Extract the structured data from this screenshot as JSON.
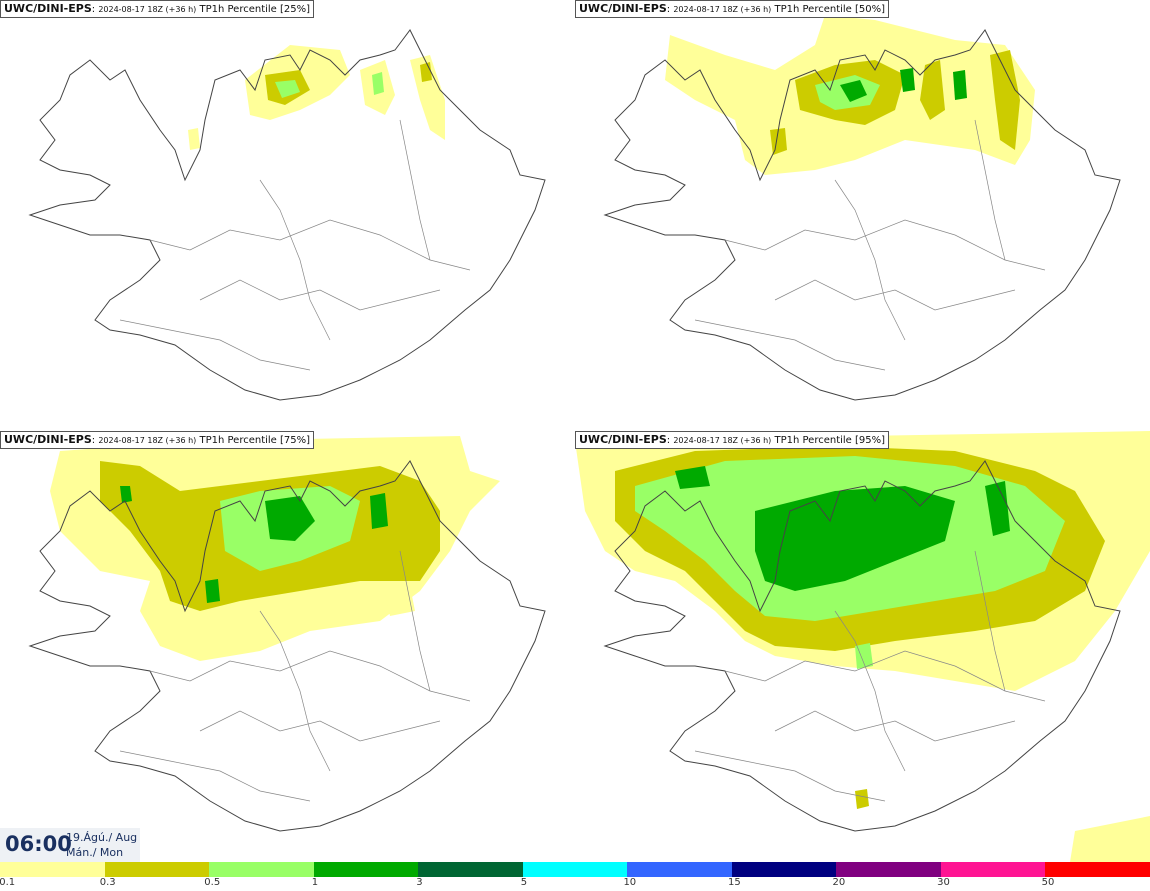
{
  "panels": [
    {
      "model": "UWC/DINI-EPS",
      "run": "2024-08-17 18Z (+36 h)",
      "product": "TP1h Percentile",
      "percentile": "[25%]"
    },
    {
      "model": "UWC/DINI-EPS",
      "run": "2024-08-17 18Z (+36 h)",
      "product": "TP1h Percentile",
      "percentile": "[50%]"
    },
    {
      "model": "UWC/DINI-EPS",
      "run": "2024-08-17 18Z (+36 h)",
      "product": "TP1h Percentile",
      "percentile": "[75%]"
    },
    {
      "model": "UWC/DINI-EPS",
      "run": "2024-08-17 18Z (+36 h)",
      "product": "TP1h Percentile",
      "percentile": "[95%]"
    }
  ],
  "valid_time": {
    "time": "06:00",
    "date": "19.Ágú./ Aug",
    "weekday": "Mán./ Mon"
  },
  "legend": {
    "colors": [
      "#ffff99",
      "#cccc00",
      "#99ff66",
      "#00aa00",
      "#006633",
      "#00ffff",
      "#3366ff",
      "#000080",
      "#800080",
      "#ff1493",
      "#ff0000"
    ],
    "thresholds": [
      "0.1",
      "0.3",
      "0.5",
      "1",
      "3",
      "5",
      "10",
      "15",
      "20",
      "30",
      "50"
    ]
  },
  "colors": {
    "coast": "#444444",
    "background": "#ffffff"
  }
}
